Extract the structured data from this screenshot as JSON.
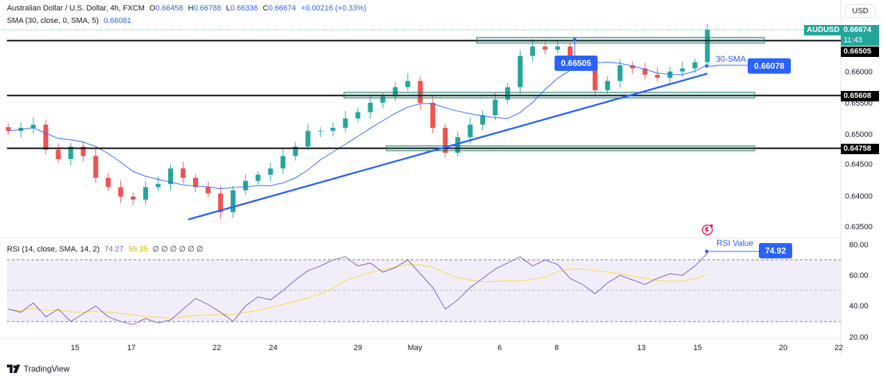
{
  "header": {
    "title": "Australian Dollar / U.S. Dollar, 4h, FXCM",
    "ohlc": {
      "o_label": "O",
      "o": "0.66458",
      "h_label": "H",
      "h": "0.66788",
      "l_label": "L",
      "l": "0.66336",
      "c_label": "C",
      "c": "0.66674",
      "change": "+0.00216 (+0.33%)"
    },
    "sma_label": "SMA (30, close, 0, SMA, 5)",
    "sma_value": "0.66081"
  },
  "currency_button": "USD",
  "price_axis": {
    "ticks": [
      "0.66000",
      "0.65500",
      "0.65000",
      "0.64500",
      "0.64000",
      "0.63500"
    ],
    "symbol_tag": "AUDUSD",
    "last_price": "0.66674",
    "countdown": "11:43",
    "level_tags": [
      "0.66505",
      "0.65608",
      "0.64758"
    ]
  },
  "rsi": {
    "label": "RSI (14, close, SMA, 14, 2)",
    "value": "74.27",
    "sma_value": "59.35",
    "placeholders": "∅ ∅ ∅ ∅ ∅ ∅",
    "ticks": [
      "80.00",
      "60.00",
      "40.00",
      "20.00"
    ]
  },
  "time_axis": [
    "15",
    "17",
    "22",
    "24",
    "29",
    "May",
    "6",
    "8",
    "13",
    "15",
    "20",
    "22"
  ],
  "annotations": {
    "resistance_value": "0.66505",
    "sma_label": "30-SMA",
    "sma_value": "0.66078",
    "rsi_label": "RSI Value",
    "rsi_value": "74.92"
  },
  "footer": {
    "brand": "TradingView"
  },
  "colors": {
    "up": "#26a69a",
    "down": "#ef5350",
    "accent": "#2962ff",
    "sma": "#2962ff",
    "rsi": "#7e57c2",
    "rsi_ma": "#fdd835",
    "rsi_band": "#ede7f6"
  },
  "chart_data": {
    "type": "candlestick",
    "symbol": "AUDUSD",
    "timeframe": "4h",
    "x_ticks": [
      "15",
      "17",
      "22",
      "24",
      "29",
      "May",
      "6",
      "8",
      "13",
      "15",
      "20",
      "22"
    ],
    "close_estimates": [
      0.6505,
      0.651,
      0.6515,
      0.6475,
      0.646,
      0.648,
      0.6465,
      0.643,
      0.6415,
      0.64,
      0.6395,
      0.6415,
      0.642,
      0.6445,
      0.643,
      0.6415,
      0.6405,
      0.6375,
      0.641,
      0.6425,
      0.6435,
      0.6445,
      0.6465,
      0.648,
      0.6505,
      0.6505,
      0.651,
      0.6525,
      0.6535,
      0.655,
      0.656,
      0.6575,
      0.6585,
      0.655,
      0.651,
      0.647,
      0.6495,
      0.6515,
      0.653,
      0.6555,
      0.6575,
      0.6625,
      0.664,
      0.6635,
      0.664,
      0.6615,
      0.661,
      0.657,
      0.6585,
      0.661,
      0.6605,
      0.6595,
      0.659,
      0.66,
      0.6605,
      0.6615,
      0.6667
    ],
    "horizontal_levels": [
      0.66505,
      0.65608,
      0.64758
    ],
    "sma_period": 30,
    "sma_last": 0.66081,
    "rsi_last": 74.27,
    "rsi_ma_last": 59.35,
    "rsi_ylim": [
      20,
      80
    ]
  }
}
